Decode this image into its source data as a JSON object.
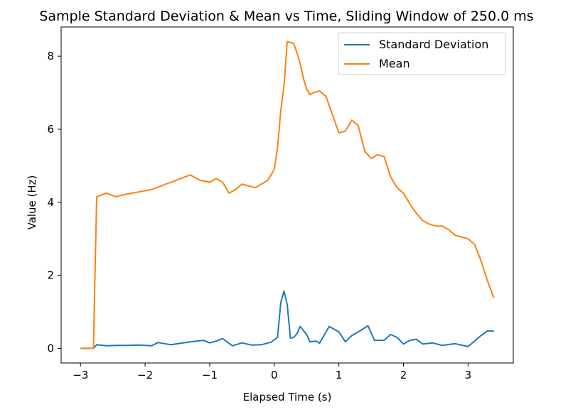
{
  "chart_data": {
    "type": "line",
    "title": "Sample Standard Deviation & Mean vs Time, Sliding Window of 250.0 ms",
    "xlabel": "Elapsed Time (s)",
    "ylabel": "Value (Hz)",
    "xlim": [
      -3.3,
      3.7
    ],
    "ylim": [
      -0.4,
      8.8
    ],
    "xticks": [
      -3,
      -2,
      -1,
      0,
      1,
      2,
      3
    ],
    "xtick_labels": [
      "−3",
      "−2",
      "−1",
      "0",
      "1",
      "2",
      "3"
    ],
    "yticks": [
      0,
      2,
      4,
      6,
      8
    ],
    "ytick_labels": [
      "0",
      "2",
      "4",
      "6",
      "8"
    ],
    "grid": false,
    "legend_position": "top-right",
    "series": [
      {
        "name": "Standard Deviation",
        "color": "#1f77b4",
        "x": [
          -3.0,
          -2.8,
          -2.75,
          -2.6,
          -2.45,
          -2.3,
          -2.1,
          -1.9,
          -1.8,
          -1.6,
          -1.3,
          -1.1,
          -1.0,
          -0.9,
          -0.8,
          -0.65,
          -0.5,
          -0.35,
          -0.2,
          -0.05,
          0.05,
          0.1,
          0.15,
          0.2,
          0.25,
          0.3,
          0.35,
          0.4,
          0.5,
          0.55,
          0.65,
          0.7,
          0.85,
          1.0,
          1.1,
          1.2,
          1.3,
          1.45,
          1.55,
          1.7,
          1.8,
          1.9,
          2.0,
          2.1,
          2.2,
          2.3,
          2.45,
          2.6,
          2.8,
          3.0,
          3.2,
          3.3,
          3.4
        ],
        "values": [
          0.0,
          0.0,
          0.1,
          0.07,
          0.08,
          0.08,
          0.09,
          0.07,
          0.16,
          0.1,
          0.18,
          0.22,
          0.15,
          0.2,
          0.27,
          0.07,
          0.15,
          0.09,
          0.1,
          0.17,
          0.3,
          1.25,
          1.57,
          1.2,
          0.28,
          0.3,
          0.4,
          0.6,
          0.38,
          0.18,
          0.2,
          0.14,
          0.6,
          0.45,
          0.18,
          0.35,
          0.45,
          0.62,
          0.22,
          0.22,
          0.38,
          0.3,
          0.12,
          0.22,
          0.25,
          0.12,
          0.15,
          0.08,
          0.13,
          0.05,
          0.35,
          0.48,
          0.47
        ]
      },
      {
        "name": "Mean",
        "color": "#ff7f0e",
        "x": [
          -3.0,
          -2.8,
          -2.75,
          -2.6,
          -2.45,
          -2.35,
          -2.2,
          -2.05,
          -1.9,
          -1.75,
          -1.6,
          -1.45,
          -1.3,
          -1.15,
          -1.0,
          -0.9,
          -0.8,
          -0.7,
          -0.6,
          -0.5,
          -0.4,
          -0.3,
          -0.2,
          -0.1,
          0.0,
          0.05,
          0.1,
          0.15,
          0.2,
          0.3,
          0.35,
          0.4,
          0.45,
          0.5,
          0.55,
          0.6,
          0.7,
          0.8,
          0.9,
          1.0,
          1.1,
          1.2,
          1.3,
          1.4,
          1.5,
          1.6,
          1.7,
          1.8,
          1.9,
          2.0,
          2.1,
          2.2,
          2.3,
          2.4,
          2.5,
          2.6,
          2.7,
          2.8,
          2.9,
          3.0,
          3.1,
          3.2,
          3.3,
          3.4
        ],
        "values": [
          0.0,
          0.0,
          4.15,
          4.25,
          4.15,
          4.2,
          4.25,
          4.3,
          4.35,
          4.45,
          4.55,
          4.65,
          4.75,
          4.6,
          4.55,
          4.65,
          4.55,
          4.25,
          4.35,
          4.5,
          4.45,
          4.4,
          4.5,
          4.6,
          4.9,
          5.5,
          6.5,
          7.2,
          8.4,
          8.35,
          8.1,
          7.8,
          7.4,
          7.1,
          6.95,
          7.0,
          7.05,
          6.9,
          6.4,
          5.9,
          5.95,
          6.25,
          6.1,
          5.4,
          5.2,
          5.3,
          5.25,
          4.7,
          4.4,
          4.25,
          3.95,
          3.7,
          3.5,
          3.4,
          3.35,
          3.35,
          3.25,
          3.1,
          3.05,
          3.0,
          2.85,
          2.4,
          1.85,
          1.38
        ]
      }
    ]
  }
}
